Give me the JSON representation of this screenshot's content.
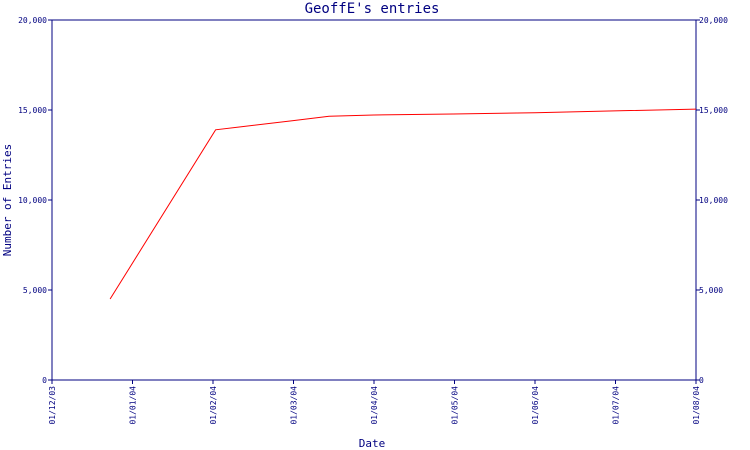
{
  "chart_data": {
    "type": "line",
    "title": "GeoffE's entries",
    "xlabel": "Date",
    "ylabel": "Number of Entries",
    "x_ticks": [
      "01/12/03",
      "01/01/04",
      "01/02/04",
      "01/03/04",
      "01/04/04",
      "01/05/04",
      "01/06/04",
      "01/07/04",
      "01/08/04"
    ],
    "y_ticks": [
      "0",
      "5,000",
      "10,000",
      "15,000",
      "20,000"
    ],
    "ylim": [
      0,
      20000
    ],
    "xlim": [
      "2003-12-01",
      "2004-08-01"
    ],
    "grid": false,
    "series": [
      {
        "color": "#ff0000",
        "x": [
          "2003-12-23",
          "2004-02-01",
          "2004-03-01",
          "2004-03-15",
          "2004-04-01",
          "2004-05-01",
          "2004-06-01",
          "2004-07-01",
          "2004-08-01"
        ],
        "values": [
          4500,
          13900,
          14400,
          14650,
          14720,
          14780,
          14850,
          14950,
          15050
        ]
      }
    ]
  }
}
